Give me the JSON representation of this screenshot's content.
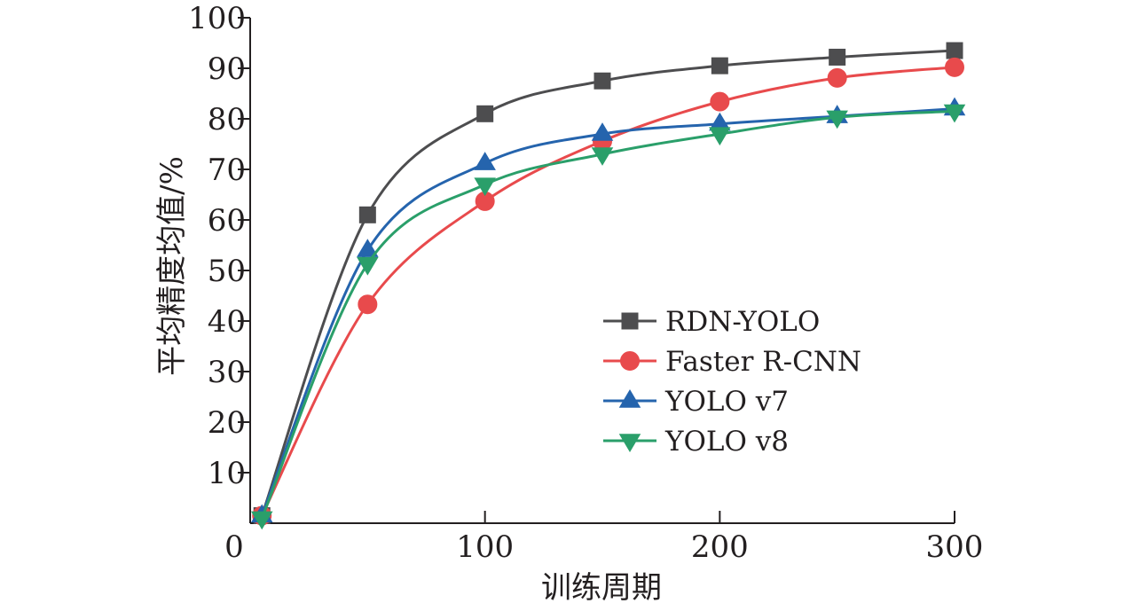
{
  "chart_data": {
    "type": "line",
    "title": "",
    "xlabel": "训练周期",
    "ylabel": "平均精度均值/%",
    "xlim": [
      0,
      300
    ],
    "ylim": [
      0,
      100
    ],
    "x_ticks": [
      "0",
      "100",
      "200",
      "300"
    ],
    "y_ticks": [
      "10",
      "20",
      "30",
      "40",
      "50",
      "60",
      "70",
      "80",
      "90",
      "100"
    ],
    "grid": false,
    "legend_position": "bottom-right",
    "x": [
      5,
      50,
      100,
      150,
      200,
      250,
      300
    ],
    "series": [
      {
        "name": "RDN-YOLO",
        "color": "#4d4d4f",
        "marker": "square",
        "values": [
          1.5,
          61,
          81,
          87.5,
          90.5,
          92.2,
          93.5
        ]
      },
      {
        "name": "Faster R-CNN",
        "color": "#e84a4c",
        "marker": "circle",
        "values": [
          1.5,
          43.3,
          63.7,
          75.6,
          83.4,
          88.1,
          90.2
        ]
      },
      {
        "name": "YOLO v7",
        "color": "#2564ad",
        "marker": "triangle-up",
        "values": [
          1.5,
          54,
          71.2,
          77,
          79,
          80.5,
          82
        ]
      },
      {
        "name": "YOLO v8",
        "color": "#2a9f6a",
        "marker": "triangle-down",
        "values": [
          1.0,
          51.3,
          67,
          73,
          77,
          80.3,
          81.5
        ]
      }
    ]
  }
}
